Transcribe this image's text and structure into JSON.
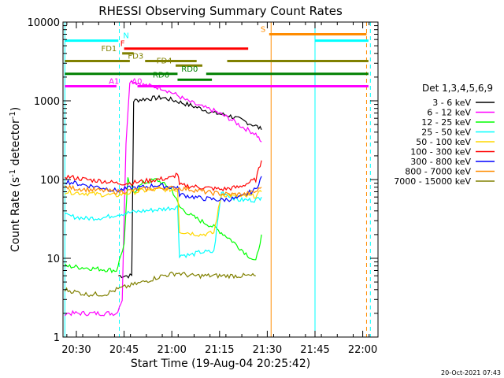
{
  "chart_data": {
    "type": "line",
    "title": "RHESSI Observing Summary Count Rates",
    "xlabel": "Start Time (19-Aug-04 20:25:42)",
    "ylabel_main": "Count Rate (s",
    "ylabel_sup1": "-1",
    "ylabel_mid": " detector",
    "ylabel_sup2": "-1",
    "ylabel_end": ")",
    "timestamp": "20-Oct-2021 07:43",
    "x_range_min": [
      20.43,
      22.08
    ],
    "y_range": [
      1,
      10000
    ],
    "y_scale": "log",
    "x_ticks": [
      {
        "t": 20.5,
        "label": "20:30"
      },
      {
        "t": 20.75,
        "label": "20:45"
      },
      {
        "t": 21.0,
        "label": "21:00"
      },
      {
        "t": 21.25,
        "label": "21:15"
      },
      {
        "t": 21.5,
        "label": "21:30"
      },
      {
        "t": 21.75,
        "label": "21:45"
      },
      {
        "t": 22.0,
        "label": "22:00"
      }
    ],
    "y_ticks": [
      {
        "v": 1,
        "label": "1"
      },
      {
        "v": 10,
        "label": "10"
      },
      {
        "v": 100,
        "label": "100"
      },
      {
        "v": 1000,
        "label": "1000"
      },
      {
        "v": 10000,
        "label": "10000"
      }
    ],
    "legend_title": "Det 1,3,4,5,6,9",
    "legend_placement": "right",
    "series": [
      {
        "name": "3 - 6 keV",
        "color": "#000000",
        "points": [
          [
            20.72,
            6
          ],
          [
            20.79,
            6
          ],
          [
            20.8,
            1000
          ],
          [
            20.85,
            1050
          ],
          [
            20.95,
            1100
          ],
          [
            21.02,
            1000
          ],
          [
            21.08,
            900
          ],
          [
            21.15,
            800
          ],
          [
            21.22,
            700
          ],
          [
            21.3,
            650
          ],
          [
            21.38,
            550
          ],
          [
            21.44,
            480
          ],
          [
            21.47,
            430
          ]
        ]
      },
      {
        "name": "6 - 12 keV",
        "color": "#ff00ff",
        "points": [
          [
            20.44,
            2
          ],
          [
            20.71,
            2
          ],
          [
            20.74,
            3
          ],
          [
            20.76,
            300
          ],
          [
            20.78,
            1800
          ],
          [
            20.85,
            1600
          ],
          [
            20.95,
            1450
          ],
          [
            21.02,
            1200
          ],
          [
            21.08,
            1000
          ],
          [
            21.15,
            850
          ],
          [
            21.22,
            750
          ],
          [
            21.3,
            600
          ],
          [
            21.38,
            450
          ],
          [
            21.44,
            380
          ],
          [
            21.47,
            300
          ]
        ]
      },
      {
        "name": "12 - 25 keV",
        "color": "#00ff00",
        "points": [
          [
            20.44,
            8
          ],
          [
            20.71,
            7
          ],
          [
            20.75,
            15
          ],
          [
            20.77,
            100
          ],
          [
            20.8,
            70
          ],
          [
            20.85,
            90
          ],
          [
            20.92,
            100
          ],
          [
            21.0,
            75
          ],
          [
            21.04,
            45
          ],
          [
            21.1,
            35
          ],
          [
            21.15,
            30
          ],
          [
            21.22,
            25
          ],
          [
            21.3,
            18
          ],
          [
            21.38,
            12
          ],
          [
            21.44,
            9
          ],
          [
            21.47,
            20
          ]
        ]
      },
      {
        "name": "25 - 50 keV",
        "color": "#00ffff",
        "points": [
          [
            20.44,
            35
          ],
          [
            20.55,
            32
          ],
          [
            20.65,
            33
          ],
          [
            20.71,
            36
          ],
          [
            20.78,
            38
          ],
          [
            20.85,
            40
          ],
          [
            20.95,
            42
          ],
          [
            21.03,
            45
          ],
          [
            21.04,
            11
          ],
          [
            21.1,
            11
          ],
          [
            21.15,
            12
          ],
          [
            21.22,
            12
          ],
          [
            21.26,
            70
          ],
          [
            21.35,
            55
          ],
          [
            21.44,
            55
          ],
          [
            21.47,
            60
          ]
        ]
      },
      {
        "name": "50 - 100 keV",
        "color": "#ffd700",
        "points": [
          [
            20.44,
            70
          ],
          [
            20.55,
            67
          ],
          [
            20.65,
            64
          ],
          [
            20.71,
            63
          ],
          [
            20.78,
            68
          ],
          [
            20.85,
            72
          ],
          [
            20.95,
            75
          ],
          [
            21.03,
            74
          ],
          [
            21.04,
            22
          ],
          [
            21.15,
            20
          ],
          [
            21.22,
            21
          ],
          [
            21.26,
            65
          ],
          [
            21.35,
            60
          ],
          [
            21.44,
            62
          ],
          [
            21.47,
            70
          ]
        ]
      },
      {
        "name": "100 - 300 keV",
        "color": "#ff0000",
        "points": [
          [
            20.44,
            110
          ],
          [
            20.55,
            100
          ],
          [
            20.65,
            95
          ],
          [
            20.71,
            90
          ],
          [
            20.78,
            90
          ],
          [
            20.85,
            95
          ],
          [
            20.92,
            100
          ],
          [
            21.0,
            105
          ],
          [
            21.03,
            120
          ],
          [
            21.04,
            85
          ],
          [
            21.15,
            80
          ],
          [
            21.26,
            75
          ],
          [
            21.35,
            80
          ],
          [
            21.44,
            100
          ],
          [
            21.47,
            175
          ]
        ]
      },
      {
        "name": "300 - 800 keV",
        "color": "#0000ff",
        "points": [
          [
            20.44,
            95
          ],
          [
            20.55,
            85
          ],
          [
            20.65,
            78
          ],
          [
            20.71,
            72
          ],
          [
            20.78,
            78
          ],
          [
            20.85,
            80
          ],
          [
            20.92,
            85
          ],
          [
            21.0,
            80
          ],
          [
            21.03,
            80
          ],
          [
            21.04,
            65
          ],
          [
            21.15,
            58
          ],
          [
            21.26,
            55
          ],
          [
            21.35,
            58
          ],
          [
            21.44,
            75
          ],
          [
            21.47,
            110
          ]
        ]
      },
      {
        "name": "800 - 7000 keV",
        "color": "#ff8c00",
        "points": [
          [
            20.44,
            80
          ],
          [
            20.55,
            75
          ],
          [
            20.65,
            72
          ],
          [
            20.71,
            70
          ],
          [
            20.78,
            72
          ],
          [
            20.85,
            75
          ],
          [
            20.95,
            78
          ],
          [
            21.03,
            78
          ],
          [
            21.1,
            75
          ],
          [
            21.2,
            68
          ],
          [
            21.3,
            65
          ],
          [
            21.38,
            65
          ],
          [
            21.44,
            70
          ],
          [
            21.47,
            80
          ]
        ]
      },
      {
        "name": "7000 - 15000 keV",
        "color": "#808000",
        "points": [
          [
            20.44,
            4
          ],
          [
            20.55,
            3.5
          ],
          [
            20.65,
            3.5
          ],
          [
            20.71,
            4
          ],
          [
            20.78,
            4.5
          ],
          [
            20.85,
            5
          ],
          [
            20.95,
            6
          ],
          [
            21.03,
            6.5
          ],
          [
            21.1,
            6
          ],
          [
            21.2,
            6
          ],
          [
            21.3,
            6
          ],
          [
            21.4,
            6
          ],
          [
            21.44,
            6
          ]
        ]
      }
    ],
    "annotations": [
      {
        "label": "N",
        "color": "#00ffff",
        "y": 5800,
        "x0": 20.44,
        "x1": 20.72,
        "lx": 20.745
      },
      {
        "label": "N",
        "color": "#00ffff",
        "y": 5800,
        "x0": 21.75,
        "x1": 22.03,
        "lx": null
      },
      {
        "label": "S",
        "color": "#ff8c00",
        "y": 7000,
        "x0": 21.51,
        "x1": 22.02,
        "lx": 21.465
      },
      {
        "label": "F",
        "color": "#ff0000",
        "y": 4600,
        "x0": 20.75,
        "x1": 21.4,
        "lx": 20.73
      },
      {
        "label": "FD1",
        "color": "#808000",
        "y": 4000,
        "x0": 20.74,
        "x1": 20.8,
        "lx": 20.63
      },
      {
        "label": "FD3",
        "color": "#808000",
        "y": 3200,
        "x0": 20.44,
        "x1": 20.78,
        "lx": 20.77
      },
      {
        "label": "",
        "color": "#808000",
        "y": 3200,
        "x0": 20.86,
        "x1": 21.13,
        "lx": null
      },
      {
        "label": "",
        "color": "#808000",
        "y": 3200,
        "x0": 21.29,
        "x1": 22.03,
        "lx": null
      },
      {
        "label": "FD4",
        "color": "#808000",
        "y": 2800,
        "x0": 21.02,
        "x1": 21.16,
        "lx": 20.92
      },
      {
        "label": "RD0",
        "color": "#008000",
        "y": 2200,
        "x0": 20.44,
        "x1": 21.03,
        "lx": 21.05
      },
      {
        "label": "",
        "color": "#008000",
        "y": 2200,
        "x0": 21.18,
        "x1": 22.03,
        "lx": null
      },
      {
        "label": "RD6",
        "color": "#008000",
        "y": 1850,
        "x0": 21.03,
        "x1": 21.21,
        "lx": 20.9
      },
      {
        "label": "A0",
        "color": "#ff00ff",
        "y": 1530,
        "x0": 20.82,
        "x1": 22.03,
        "lx": 20.79
      },
      {
        "label": "A1",
        "color": "#ff00ff",
        "y": 1530,
        "x0": 20.44,
        "x1": 20.71,
        "lx": 20.67
      }
    ],
    "vlines": [
      {
        "t": 20.44,
        "color": "#00ffff",
        "dash": false
      },
      {
        "t": 20.725,
        "color": "#00ffff",
        "dash": true
      },
      {
        "t": 21.52,
        "color": "#ff8c00",
        "dash": false
      },
      {
        "t": 21.75,
        "color": "#00ffff",
        "dash": false
      },
      {
        "t": 22.02,
        "color": "#ff8c00",
        "dash": true
      },
      {
        "t": 22.04,
        "color": "#00ffff",
        "dash": true
      }
    ]
  }
}
